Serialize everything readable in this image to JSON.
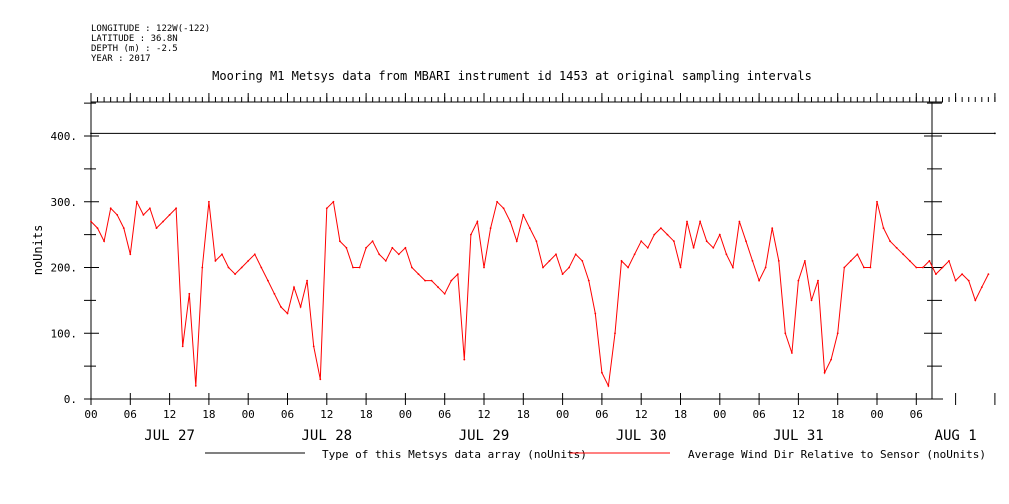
{
  "header": {
    "lines": [
      "LONGITUDE : 122W(-122)",
      "LATITUDE : 36.8N",
      "DEPTH (m) : -2.5",
      "YEAR : 2017"
    ]
  },
  "chart_data": {
    "type": "line",
    "title": "Mooring M1 Metsys data from MBARI instrument id 1453 at original sampling intervals",
    "ylabel": "noUnits",
    "ylim": [
      0,
      450
    ],
    "yticks": [
      0,
      100,
      200,
      300,
      400
    ],
    "ytick_labels": [
      "0.",
      "100.",
      "200.",
      "300.",
      "400."
    ],
    "xlim_hours": [
      0,
      138
    ],
    "hour_tick_labels": [
      "00",
      "06",
      "12",
      "18",
      "00",
      "06",
      "12",
      "18",
      "00",
      "06",
      "12",
      "18",
      "00",
      "06",
      "12",
      "18",
      "00",
      "06",
      "12",
      "18",
      "00",
      "06"
    ],
    "day_labels": [
      "JUL 27",
      "JUL 28",
      "JUL 29",
      "JUL 30",
      "JUL 31",
      "AUG  1"
    ],
    "legend_position": "bottom",
    "series": [
      {
        "name": "Type of this Metsys data array (noUnits)",
        "color": "#000000",
        "x": [
          0,
          138
        ],
        "values": [
          404,
          404
        ]
      },
      {
        "name": "Average Wind Dir Relative to Sensor (noUnits)",
        "color": "#ff0000",
        "x": [
          0,
          1,
          2,
          3,
          4,
          5,
          6,
          7,
          8,
          9,
          10,
          11,
          12,
          13,
          14,
          15,
          16,
          17,
          18,
          19,
          20,
          21,
          22,
          23,
          24,
          25,
          26,
          27,
          28,
          29,
          30,
          31,
          32,
          33,
          34,
          35,
          36,
          37,
          38,
          39,
          40,
          41,
          42,
          43,
          44,
          45,
          46,
          47,
          48,
          49,
          50,
          51,
          52,
          53,
          54,
          55,
          56,
          57,
          58,
          59,
          60,
          61,
          62,
          63,
          64,
          65,
          66,
          67,
          68,
          69,
          70,
          71,
          72,
          73,
          74,
          75,
          76,
          77,
          78,
          79,
          80,
          81,
          82,
          83,
          84,
          85,
          86,
          87,
          88,
          89,
          90,
          91,
          92,
          93,
          94,
          95,
          96,
          97,
          98,
          99,
          100,
          101,
          102,
          103,
          104,
          105,
          106,
          107,
          108,
          109,
          110,
          111,
          112,
          113,
          114,
          115,
          116,
          117,
          118,
          119,
          120,
          121,
          122,
          123,
          124,
          125,
          126,
          127,
          128,
          129,
          130,
          131,
          132,
          133,
          134,
          135,
          136,
          137
        ],
        "values": [
          270,
          260,
          240,
          290,
          280,
          260,
          220,
          300,
          280,
          290,
          260,
          270,
          280,
          290,
          80,
          160,
          20,
          200,
          300,
          210,
          220,
          200,
          190,
          200,
          210,
          220,
          200,
          180,
          160,
          140,
          130,
          170,
          140,
          180,
          80,
          30,
          290,
          300,
          240,
          230,
          200,
          200,
          230,
          240,
          220,
          210,
          230,
          220,
          230,
          200,
          190,
          180,
          180,
          170,
          160,
          180,
          190,
          60,
          250,
          270,
          200,
          260,
          300,
          290,
          270,
          240,
          280,
          260,
          240,
          200,
          210,
          220,
          190,
          200,
          220,
          210,
          180,
          130,
          40,
          20,
          100,
          210,
          200,
          220,
          240,
          230,
          250,
          260,
          250,
          240,
          200,
          270,
          230,
          270,
          240,
          230,
          250,
          220,
          200,
          270,
          240,
          210,
          180,
          200,
          260,
          210,
          100,
          70,
          180,
          210,
          150,
          180,
          40,
          60,
          100,
          200,
          210,
          220,
          200,
          200,
          300,
          260,
          240,
          230,
          220,
          210,
          200,
          200,
          210,
          190,
          200,
          210,
          180,
          190,
          180,
          150,
          170,
          190
        ]
      }
    ]
  }
}
